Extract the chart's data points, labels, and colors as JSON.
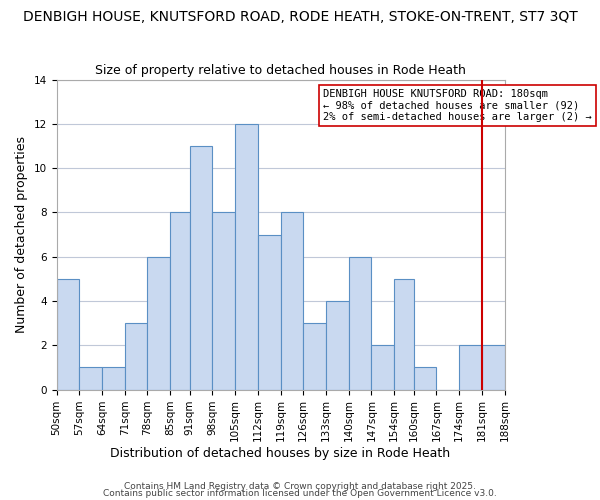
{
  "title": "DENBIGH HOUSE, KNUTSFORD ROAD, RODE HEATH, STOKE-ON-TRENT, ST7 3QT",
  "subtitle": "Size of property relative to detached houses in Rode Heath",
  "xlabel": "Distribution of detached houses by size in Rode Heath",
  "ylabel": "Number of detached properties",
  "bin_labels": [
    "50sqm",
    "57sqm",
    "64sqm",
    "71sqm",
    "78sqm",
    "85sqm",
    "91sqm",
    "98sqm",
    "105sqm",
    "112sqm",
    "119sqm",
    "126sqm",
    "133sqm",
    "140sqm",
    "147sqm",
    "154sqm",
    "160sqm",
    "167sqm",
    "174sqm",
    "181sqm",
    "188sqm"
  ],
  "bin_edges": [
    50,
    57,
    64,
    71,
    78,
    85,
    91,
    98,
    105,
    112,
    119,
    126,
    133,
    140,
    147,
    154,
    160,
    167,
    174,
    181,
    188
  ],
  "counts": [
    5,
    1,
    1,
    3,
    6,
    8,
    11,
    8,
    12,
    7,
    8,
    3,
    4,
    6,
    2,
    5,
    1,
    0,
    2,
    2
  ],
  "bar_facecolor": "#c9d9f0",
  "bar_edgecolor": "#5a8fc4",
  "grid_color": "#c0c8d8",
  "vline_x": 181,
  "vline_color": "#cc0000",
  "annotation_text": "DENBIGH HOUSE KNUTSFORD ROAD: 180sqm\n← 98% of detached houses are smaller (92)\n2% of semi-detached houses are larger (2) →",
  "annotation_box_edgecolor": "#cc0000",
  "ylim": [
    0,
    14
  ],
  "yticks": [
    0,
    2,
    4,
    6,
    8,
    10,
    12,
    14
  ],
  "footer1": "Contains HM Land Registry data © Crown copyright and database right 2025.",
  "footer2": "Contains public sector information licensed under the Open Government Licence v3.0.",
  "title_fontsize": 10,
  "subtitle_fontsize": 9,
  "xlabel_fontsize": 9,
  "ylabel_fontsize": 9,
  "tick_fontsize": 7.5,
  "annotation_fontsize": 7.5,
  "footer_fontsize": 6.5
}
